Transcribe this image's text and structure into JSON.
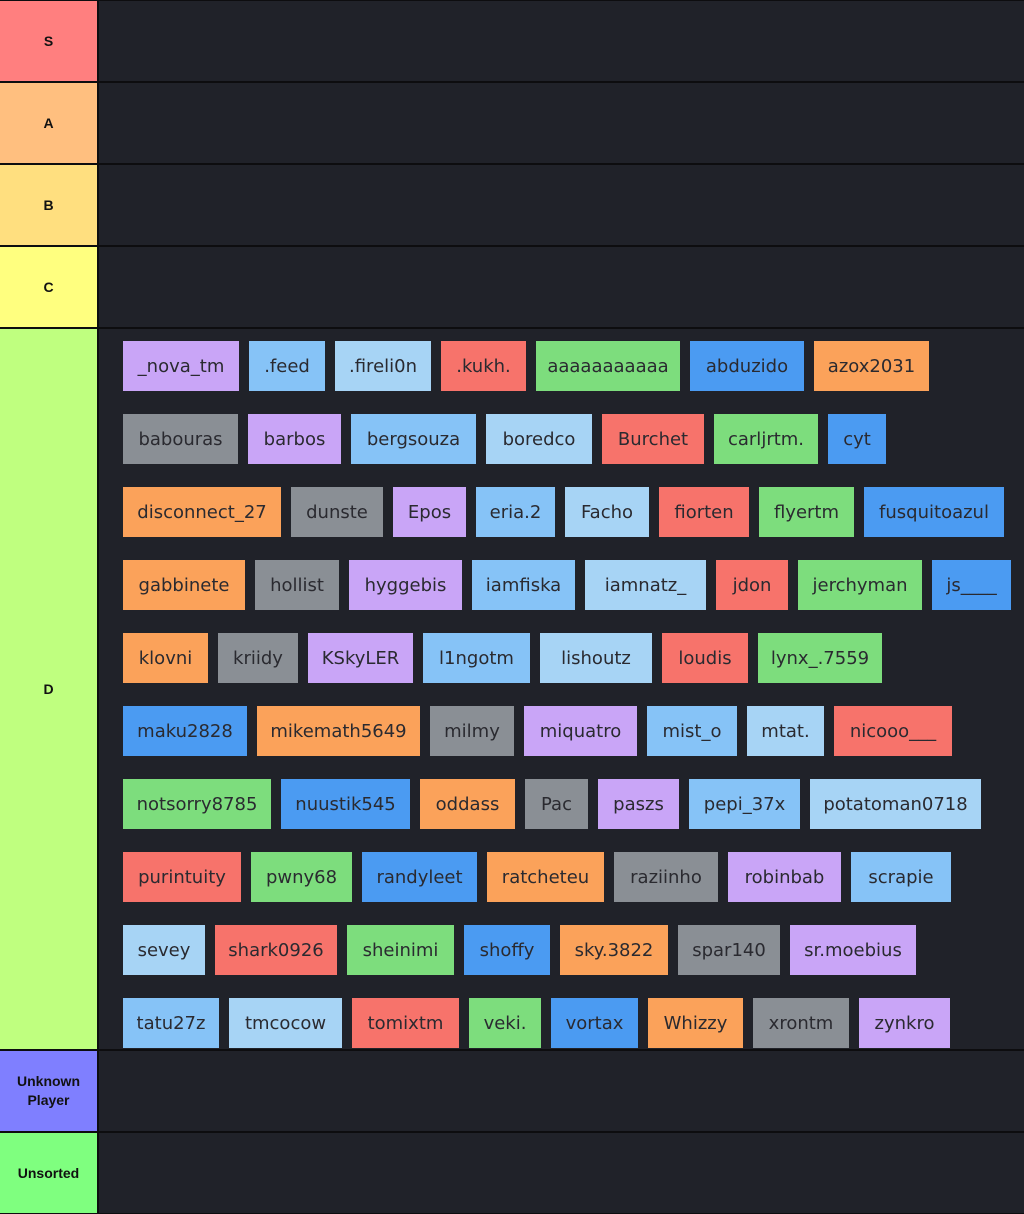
{
  "tiers": [
    {
      "label": "S",
      "color": "#ff7f7f"
    },
    {
      "label": "A",
      "color": "#ffbf7f"
    },
    {
      "label": "B",
      "color": "#ffdf7f"
    },
    {
      "label": "C",
      "color": "#ffff7f"
    },
    {
      "label": "D",
      "color": "#bfff7f"
    },
    {
      "label": "Unknown\nPlayer",
      "color": "#7f7fff"
    },
    {
      "label": "Unsorted",
      "color": "#7fff7f"
    }
  ],
  "palette": {
    "purple": "#c9a5f7",
    "lightblue": "#86c3f7",
    "paleblue": "#a7d4f5",
    "red": "#f7736b",
    "green": "#7ddd7d",
    "blue": "#4b9bf2",
    "orange": "#fba25a",
    "gray": "#8a8f95"
  },
  "items": [
    {
      "name": "_nova_tm",
      "color": "purple"
    },
    {
      "name": ".feed",
      "color": "lightblue"
    },
    {
      "name": ".fireli0n",
      "color": "paleblue"
    },
    {
      "name": ".kukh.",
      "color": "red"
    },
    {
      "name": "aaaaaaaaaaa",
      "color": "green"
    },
    {
      "name": "abduzido",
      "color": "blue"
    },
    {
      "name": "azox2031",
      "color": "orange"
    },
    {
      "name": "babouras",
      "color": "gray"
    },
    {
      "name": "barbos",
      "color": "purple"
    },
    {
      "name": "bergsouza",
      "color": "lightblue"
    },
    {
      "name": "boredco",
      "color": "paleblue"
    },
    {
      "name": "Burchet",
      "color": "red"
    },
    {
      "name": "carljrtm.",
      "color": "green"
    },
    {
      "name": "cyt",
      "color": "blue"
    },
    {
      "name": "disconnect_27",
      "color": "orange"
    },
    {
      "name": "dunste",
      "color": "gray"
    },
    {
      "name": "Epos",
      "color": "purple"
    },
    {
      "name": "eria.2",
      "color": "lightblue"
    },
    {
      "name": "Facho",
      "color": "paleblue"
    },
    {
      "name": "fiorten",
      "color": "red"
    },
    {
      "name": "flyertm",
      "color": "green"
    },
    {
      "name": "fusquitoazul",
      "color": "blue"
    },
    {
      "name": "gabbinete",
      "color": "orange"
    },
    {
      "name": "hollist",
      "color": "gray"
    },
    {
      "name": "hyggebis",
      "color": "purple"
    },
    {
      "name": "iamfiska",
      "color": "lightblue"
    },
    {
      "name": "iamnatz_",
      "color": "paleblue"
    },
    {
      "name": "jdon",
      "color": "red"
    },
    {
      "name": "jerchyman",
      "color": "green"
    },
    {
      "name": "js____",
      "color": "blue"
    },
    {
      "name": "klovni",
      "color": "orange"
    },
    {
      "name": "kriidy",
      "color": "gray"
    },
    {
      "name": "KSkyLER",
      "color": "purple"
    },
    {
      "name": "l1ngotm",
      "color": "lightblue"
    },
    {
      "name": "lishoutz",
      "color": "paleblue"
    },
    {
      "name": "loudis",
      "color": "red"
    },
    {
      "name": "lynx_.7559",
      "color": "green"
    },
    {
      "name": "maku2828",
      "color": "blue"
    },
    {
      "name": "mikemath5649",
      "color": "orange"
    },
    {
      "name": "milmy",
      "color": "gray"
    },
    {
      "name": "miquatro",
      "color": "purple"
    },
    {
      "name": "mist_o",
      "color": "lightblue"
    },
    {
      "name": "mtat.",
      "color": "paleblue"
    },
    {
      "name": "nicooo___",
      "color": "red"
    },
    {
      "name": "notsorry8785",
      "color": "green"
    },
    {
      "name": "nuustik545",
      "color": "blue"
    },
    {
      "name": "oddass",
      "color": "orange"
    },
    {
      "name": "Pac",
      "color": "gray"
    },
    {
      "name": "paszs",
      "color": "purple"
    },
    {
      "name": "pepi_37x",
      "color": "lightblue"
    },
    {
      "name": "potatoman0718",
      "color": "paleblue"
    },
    {
      "name": "purintuity",
      "color": "red"
    },
    {
      "name": "pwny68",
      "color": "green"
    },
    {
      "name": "randyleet",
      "color": "blue"
    },
    {
      "name": "ratcheteu",
      "color": "orange"
    },
    {
      "name": "raziinho",
      "color": "gray"
    },
    {
      "name": "robinbab",
      "color": "purple"
    },
    {
      "name": "scrapie",
      "color": "lightblue"
    },
    {
      "name": "sevey",
      "color": "paleblue"
    },
    {
      "name": "shark0926",
      "color": "red"
    },
    {
      "name": "sheinimi",
      "color": "green"
    },
    {
      "name": "shoffy",
      "color": "blue"
    },
    {
      "name": "sky.3822",
      "color": "orange"
    },
    {
      "name": "spar140",
      "color": "gray"
    },
    {
      "name": "sr.moebius",
      "color": "purple"
    },
    {
      "name": "tatu27z",
      "color": "lightblue"
    },
    {
      "name": "tmcocow",
      "color": "paleblue"
    },
    {
      "name": "tomixtm",
      "color": "red"
    },
    {
      "name": "veki.",
      "color": "green"
    },
    {
      "name": "vortax",
      "color": "blue"
    },
    {
      "name": "Whizzy",
      "color": "orange"
    },
    {
      "name": "xrontm",
      "color": "gray"
    },
    {
      "name": "zynkro",
      "color": "purple"
    }
  ]
}
